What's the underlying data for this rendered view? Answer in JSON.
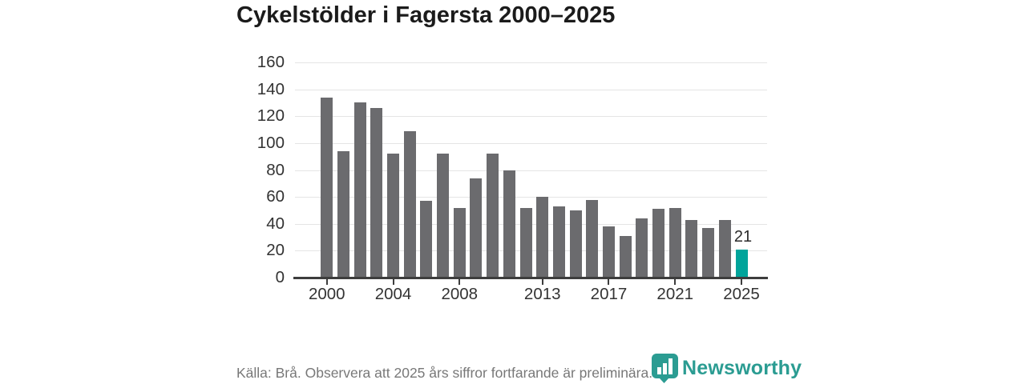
{
  "title": "Cykelstölder i Fagersta 2000–2025",
  "chart_data": {
    "type": "bar",
    "title": "Cykelstölder i Fagersta 2000–2025",
    "x": [
      2000,
      2001,
      2002,
      2003,
      2004,
      2005,
      2006,
      2007,
      2008,
      2009,
      2010,
      2011,
      2012,
      2013,
      2014,
      2015,
      2016,
      2017,
      2018,
      2019,
      2020,
      2021,
      2022,
      2023,
      2024,
      2025
    ],
    "values": [
      134,
      94,
      130,
      126,
      92,
      109,
      57,
      92,
      52,
      74,
      92,
      80,
      52,
      60,
      53,
      50,
      58,
      38,
      31,
      44,
      51,
      52,
      43,
      37,
      43,
      21
    ],
    "highlight_year": 2025,
    "highlight_value": 21,
    "highlight_value_label": "21",
    "xtick_labels": [
      2000,
      2004,
      2008,
      2013,
      2017,
      2021,
      2025
    ],
    "ylim": [
      0,
      160
    ],
    "ytick_step": 20,
    "xlabel": "",
    "ylabel": "",
    "grid": "horizontal",
    "legend": "none",
    "bar_color": "#6b6b6e",
    "highlight_color": "#00a49b"
  },
  "footer": {
    "source_note": "Källa: Brå. Observera att 2025 års siffror fortfarande är preliminära."
  },
  "branding": {
    "logo_text": "Newsworthy",
    "logo_color": "#2b9c92",
    "logo_icon": "newsworthy-bar-chart-banner-icon"
  }
}
